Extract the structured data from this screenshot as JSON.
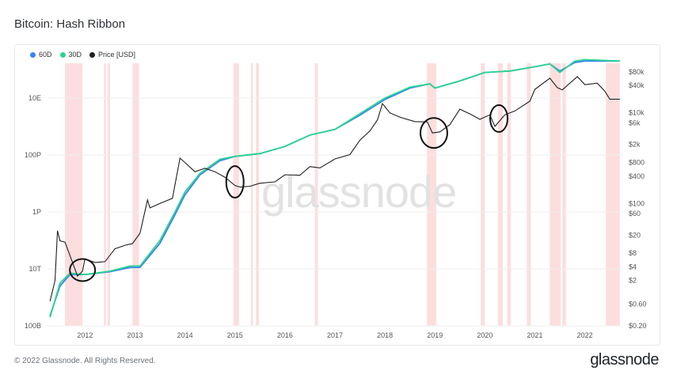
{
  "title": "Bitcoin: Hash Ribbon",
  "footer": "© 2022 Glassnode. All Rights Reserved.",
  "brand": "glassnode",
  "watermark": "glassnode",
  "colors": {
    "ma60": "#3b82f6",
    "ma30": "#2bd48f",
    "price": "#1f1f1f",
    "band": "#fbd3d3"
  },
  "chart_data": {
    "type": "line",
    "legend": [
      {
        "name": "60D",
        "color": "#3b82f6"
      },
      {
        "name": "30D",
        "color": "#2bd48f"
      },
      {
        "name": "Price [USD]",
        "color": "#1f1f1f"
      }
    ],
    "x_ticks": [
      "2012",
      "2013",
      "2014",
      "2015",
      "2016",
      "2017",
      "2018",
      "2019",
      "2020",
      "2021",
      "2022"
    ],
    "y_left_ticks": [
      "100B",
      "10T",
      "1P",
      "100P",
      "10E"
    ],
    "y_right_ticks": [
      "$0.20",
      "$0.60",
      "$2",
      "$4",
      "$8",
      "$20",
      "$60",
      "$100",
      "$400",
      "$800",
      "$2k",
      "$6k",
      "$10k",
      "$40k",
      "$80k"
    ],
    "x_range": [
      2011.25,
      2022.75
    ],
    "hashrate_log_range": [
      11,
      20
    ],
    "price_log_range": [
      -0.699,
      4.954
    ],
    "capitulation_bands": [
      [
        2011.6,
        2011.95
      ],
      [
        2012.38,
        2012.42
      ],
      [
        2012.45,
        2012.5
      ],
      [
        2012.95,
        2013.08
      ],
      [
        2014.97,
        2015.08
      ],
      [
        2015.32,
        2015.36
      ],
      [
        2015.42,
        2015.48
      ],
      [
        2016.6,
        2016.66
      ],
      [
        2018.84,
        2019.03
      ],
      [
        2019.92,
        2020.0
      ],
      [
        2020.26,
        2020.36
      ],
      [
        2020.45,
        2020.52
      ],
      [
        2020.84,
        2020.92
      ],
      [
        2021.3,
        2021.52
      ],
      [
        2021.55,
        2021.62
      ],
      [
        2022.42,
        2022.7
      ]
    ],
    "hash_60d": [
      [
        2011.3,
        11.35
      ],
      [
        2011.5,
        12.4
      ],
      [
        2011.7,
        12.8
      ],
      [
        2012.0,
        12.8
      ],
      [
        2012.5,
        12.9
      ],
      [
        2012.9,
        13.05
      ],
      [
        2013.1,
        13.05
      ],
      [
        2013.5,
        13.9
      ],
      [
        2013.8,
        14.9
      ],
      [
        2014.0,
        15.6
      ],
      [
        2014.3,
        16.3
      ],
      [
        2014.7,
        16.8
      ],
      [
        2015.0,
        16.95
      ],
      [
        2015.5,
        17.05
      ],
      [
        2016.0,
        17.3
      ],
      [
        2016.5,
        17.7
      ],
      [
        2017.0,
        17.9
      ],
      [
        2017.5,
        18.4
      ],
      [
        2018.0,
        18.95
      ],
      [
        2018.5,
        19.35
      ],
      [
        2018.9,
        19.5
      ],
      [
        2019.0,
        19.35
      ],
      [
        2019.5,
        19.6
      ],
      [
        2020.0,
        19.9
      ],
      [
        2020.5,
        19.95
      ],
      [
        2021.0,
        20.1
      ],
      [
        2021.3,
        20.2
      ],
      [
        2021.5,
        19.95
      ],
      [
        2021.8,
        20.25
      ],
      [
        2022.0,
        20.3
      ],
      [
        2022.7,
        20.3
      ]
    ],
    "hash_30d": [
      [
        2011.3,
        11.3
      ],
      [
        2011.5,
        12.5
      ],
      [
        2011.7,
        12.85
      ],
      [
        2012.0,
        12.8
      ],
      [
        2012.5,
        12.92
      ],
      [
        2012.9,
        13.1
      ],
      [
        2013.1,
        13.1
      ],
      [
        2013.5,
        14.0
      ],
      [
        2013.8,
        15.0
      ],
      [
        2014.0,
        15.7
      ],
      [
        2014.3,
        16.35
      ],
      [
        2014.7,
        16.85
      ],
      [
        2015.0,
        16.95
      ],
      [
        2015.5,
        17.05
      ],
      [
        2016.0,
        17.3
      ],
      [
        2016.5,
        17.7
      ],
      [
        2017.0,
        17.9
      ],
      [
        2017.5,
        18.45
      ],
      [
        2018.0,
        19.0
      ],
      [
        2018.5,
        19.38
      ],
      [
        2018.9,
        19.5
      ],
      [
        2019.0,
        19.35
      ],
      [
        2019.5,
        19.6
      ],
      [
        2020.0,
        19.9
      ],
      [
        2020.5,
        19.95
      ],
      [
        2021.0,
        20.1
      ],
      [
        2021.3,
        20.2
      ],
      [
        2021.5,
        19.9
      ],
      [
        2021.8,
        20.3
      ],
      [
        2022.0,
        20.35
      ],
      [
        2022.7,
        20.3
      ]
    ],
    "price": [
      [
        2011.3,
        0.7
      ],
      [
        2011.4,
        2.0
      ],
      [
        2011.45,
        25
      ],
      [
        2011.5,
        15
      ],
      [
        2011.6,
        14
      ],
      [
        2011.75,
        5
      ],
      [
        2011.85,
        2.5
      ],
      [
        2011.95,
        3.2
      ],
      [
        2012.0,
        6
      ],
      [
        2012.2,
        5
      ],
      [
        2012.4,
        5.2
      ],
      [
        2012.6,
        10
      ],
      [
        2012.8,
        12
      ],
      [
        2012.95,
        13
      ],
      [
        2013.1,
        22
      ],
      [
        2013.25,
        120
      ],
      [
        2013.3,
        80
      ],
      [
        2013.5,
        100
      ],
      [
        2013.75,
        130
      ],
      [
        2013.9,
        1000
      ],
      [
        2014.0,
        800
      ],
      [
        2014.2,
        500
      ],
      [
        2014.4,
        600
      ],
      [
        2014.6,
        500
      ],
      [
        2014.8,
        380
      ],
      [
        2015.0,
        250
      ],
      [
        2015.1,
        230
      ],
      [
        2015.3,
        240
      ],
      [
        2015.5,
        280
      ],
      [
        2015.8,
        300
      ],
      [
        2016.0,
        430
      ],
      [
        2016.3,
        420
      ],
      [
        2016.5,
        650
      ],
      [
        2016.7,
        610
      ],
      [
        2017.0,
        960
      ],
      [
        2017.3,
        1200
      ],
      [
        2017.5,
        2500
      ],
      [
        2017.7,
        4000
      ],
      [
        2017.85,
        7000
      ],
      [
        2017.95,
        16000
      ],
      [
        2018.1,
        10000
      ],
      [
        2018.3,
        8000
      ],
      [
        2018.6,
        6400
      ],
      [
        2018.85,
        6300
      ],
      [
        2018.95,
        3600
      ],
      [
        2019.1,
        3800
      ],
      [
        2019.3,
        5500
      ],
      [
        2019.5,
        12000
      ],
      [
        2019.7,
        9500
      ],
      [
        2019.9,
        7200
      ],
      [
        2020.1,
        9000
      ],
      [
        2020.2,
        5000
      ],
      [
        2020.4,
        9000
      ],
      [
        2020.6,
        11000
      ],
      [
        2020.9,
        18000
      ],
      [
        2021.0,
        33000
      ],
      [
        2021.3,
        58000
      ],
      [
        2021.45,
        36000
      ],
      [
        2021.55,
        32000
      ],
      [
        2021.7,
        45000
      ],
      [
        2021.85,
        63000
      ],
      [
        2022.0,
        42000
      ],
      [
        2022.25,
        45000
      ],
      [
        2022.4,
        30000
      ],
      [
        2022.5,
        20000
      ],
      [
        2022.7,
        20000
      ]
    ]
  }
}
